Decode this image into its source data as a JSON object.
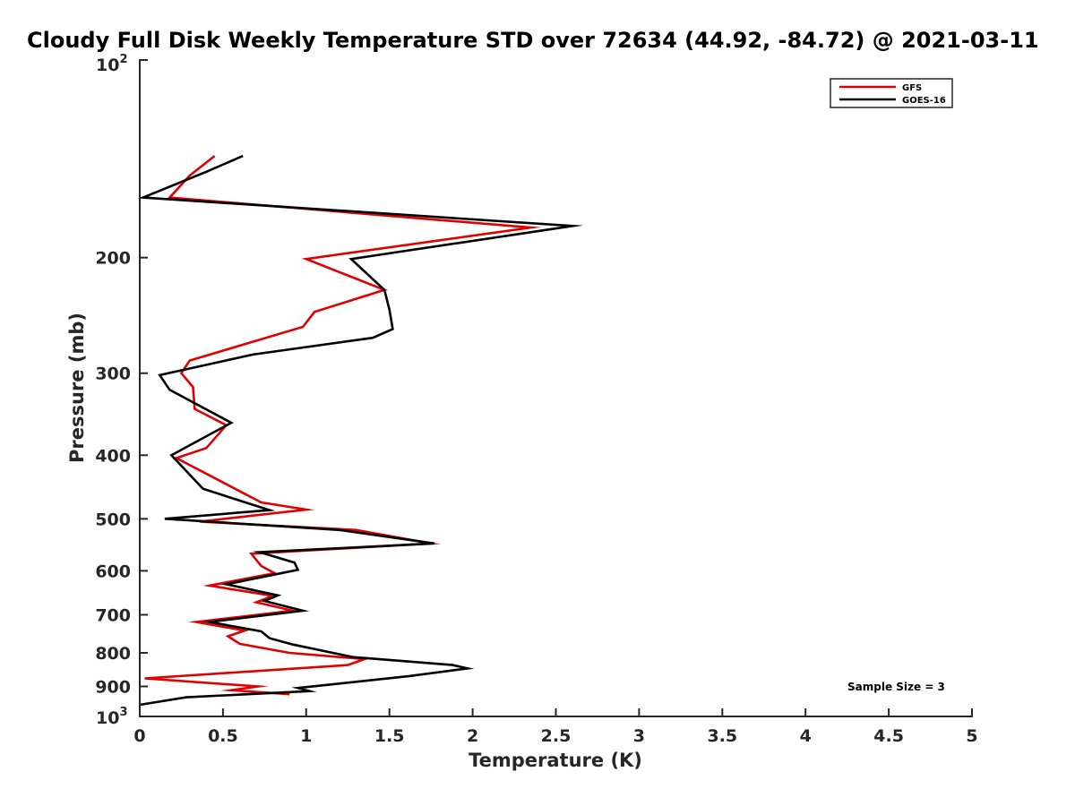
{
  "chart_data": {
    "type": "line",
    "title": "Cloudy Full Disk Weekly Temperature STD over 72634 (44.92, -84.72) @ 2021-03-11",
    "xlabel": "Temperature (K)",
    "ylabel": "Pressure (mb)",
    "xlim": [
      0,
      5
    ],
    "ylim": [
      100,
      1000
    ],
    "yscale": "log",
    "yreversed": true,
    "x_ticks": [
      0,
      0.5,
      1,
      1.5,
      2,
      2.5,
      3,
      3.5,
      4,
      4.5,
      5
    ],
    "x_tick_labels": [
      "0",
      "0.5",
      "1",
      "1.5",
      "2",
      "2.5",
      "3",
      "3.5",
      "4",
      "4.5",
      "5"
    ],
    "y_ticks": [
      200,
      300,
      400,
      500,
      600,
      700,
      800,
      900
    ],
    "y_tick_labels": [
      "200",
      "300",
      "400",
      "500",
      "600",
      "700",
      "800",
      "900"
    ],
    "y_end_labels": {
      "top": {
        "base": "10",
        "exp": "2"
      },
      "bottom": {
        "base": "10",
        "exp": "3"
      }
    },
    "legend_position": "top-right",
    "grid": false,
    "annotation": "Sample Size = 3",
    "series": [
      {
        "name": "GFS",
        "color": "#e00000",
        "x": [
          0.45,
          0.3,
          0.18,
          2.35,
          1.0,
          1.47,
          1.05,
          0.98,
          0.3,
          0.25,
          0.32,
          0.33,
          0.52,
          0.4,
          0.22,
          0.5,
          0.73,
          1.0,
          0.36,
          1.3,
          1.75,
          0.67,
          0.73,
          0.81,
          0.42,
          0.8,
          0.7,
          0.92,
          0.34,
          0.63,
          0.53,
          0.6,
          0.9,
          1.35,
          1.25,
          0.03,
          0.71,
          0.55,
          0.9
        ],
        "y": [
          140,
          150,
          162,
          180,
          201,
          224,
          242,
          255,
          287,
          300,
          315,
          340,
          360,
          390,
          404,
          440,
          472,
          484,
          505,
          520,
          545,
          565,
          590,
          605,
          632,
          655,
          670,
          690,
          718,
          740,
          755,
          775,
          800,
          818,
          835,
          875,
          900,
          912,
          925
        ]
      },
      {
        "name": "GOES-16",
        "color": "#000000",
        "x": [
          0.62,
          0.4,
          0.02,
          2.6,
          1.27,
          1.47,
          1.5,
          1.52,
          1.4,
          0.68,
          0.12,
          0.18,
          0.55,
          0.19,
          0.38,
          0.78,
          0.15,
          1.2,
          1.77,
          0.72,
          0.93,
          0.95,
          0.52,
          0.83,
          0.75,
          0.98,
          0.42,
          0.73,
          0.78,
          0.92,
          1.28,
          1.88,
          1.97,
          1.62,
          1.13,
          0.95,
          1.02,
          0.28,
          0.0
        ],
        "y": [
          140,
          148,
          162,
          179,
          201,
          224,
          240,
          257,
          265,
          281,
          302,
          318,
          357,
          400,
          450,
          485,
          500,
          520,
          545,
          562,
          583,
          598,
          629,
          654,
          667,
          690,
          718,
          742,
          760,
          777,
          812,
          835,
          845,
          868,
          895,
          905,
          915,
          935,
          960
        ]
      }
    ]
  }
}
